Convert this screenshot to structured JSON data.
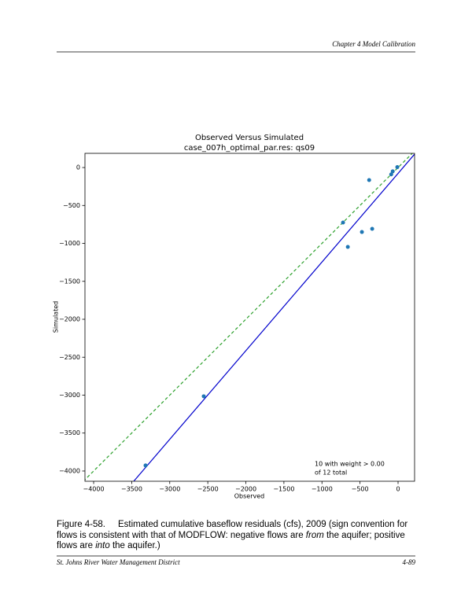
{
  "header": {
    "title": "Chapter 4 Model Calibration"
  },
  "chart_data": {
    "type": "scatter",
    "title": "Observed Versus Simulated",
    "subtitle": "case_007h_optimal_par.res: qs09",
    "x_label": "Observed",
    "y_label": "Simulated",
    "annotation": [
      "10 with weight > 0.00",
      "of 12 total"
    ],
    "xlim": [
      -4114,
      217
    ],
    "ylim": [
      -4135,
      187
    ],
    "xticks": [
      {
        "value": -4000,
        "label": "−4000"
      },
      {
        "value": -3500,
        "label": "−3500"
      },
      {
        "value": -3000,
        "label": "−3000"
      },
      {
        "value": -2500,
        "label": "−2500"
      },
      {
        "value": -2000,
        "label": "−2000"
      },
      {
        "value": -1500,
        "label": "−1500"
      },
      {
        "value": -1000,
        "label": "−1000"
      },
      {
        "value": -500,
        "label": "−500"
      },
      0
    ],
    "yticks": [
      0,
      {
        "value": -500,
        "label": "−500"
      },
      {
        "value": -1000,
        "label": "−1000"
      },
      {
        "value": -1500,
        "label": "−1500"
      },
      {
        "value": -2000,
        "label": "−2000"
      },
      {
        "value": -2500,
        "label": "−2500"
      },
      {
        "value": -3000,
        "label": "−3000"
      },
      {
        "value": -3500,
        "label": "−3500"
      },
      {
        "value": -4000,
        "label": "−4000"
      }
    ],
    "color": "#1f77b4",
    "x": [
      -10,
      -70,
      -90,
      -380,
      -723,
      -340,
      -475,
      -660,
      -2553,
      -3318
    ],
    "values": [
      5,
      -50,
      -90,
      -165,
      -725,
      -808,
      -850,
      -1046,
      -3015,
      -3927
    ],
    "lines": [
      {
        "color": "#2ca02c",
        "dashed": true,
        "x": [
          -4135,
          187
        ],
        "values": [
          -4135,
          187
        ]
      },
      {
        "color": "#0000cc",
        "dashed": false,
        "x": [
          -3473,
          217
        ],
        "values": [
          -4135,
          176
        ]
      }
    ]
  },
  "caption": {
    "label": "Figure 4-58.",
    "text_1": "Estimated cumulative baseflow residuals (cfs), 2009 (sign convention for flows is consistent with that of MODFLOW: negative flows are ",
    "from": "from",
    "text_2": " the aquifer; positive flows are ",
    "into": "into",
    "text_3": " the aquifer.)"
  },
  "footer": {
    "left": "St. Johns River Water Management District",
    "right": "4-89"
  }
}
